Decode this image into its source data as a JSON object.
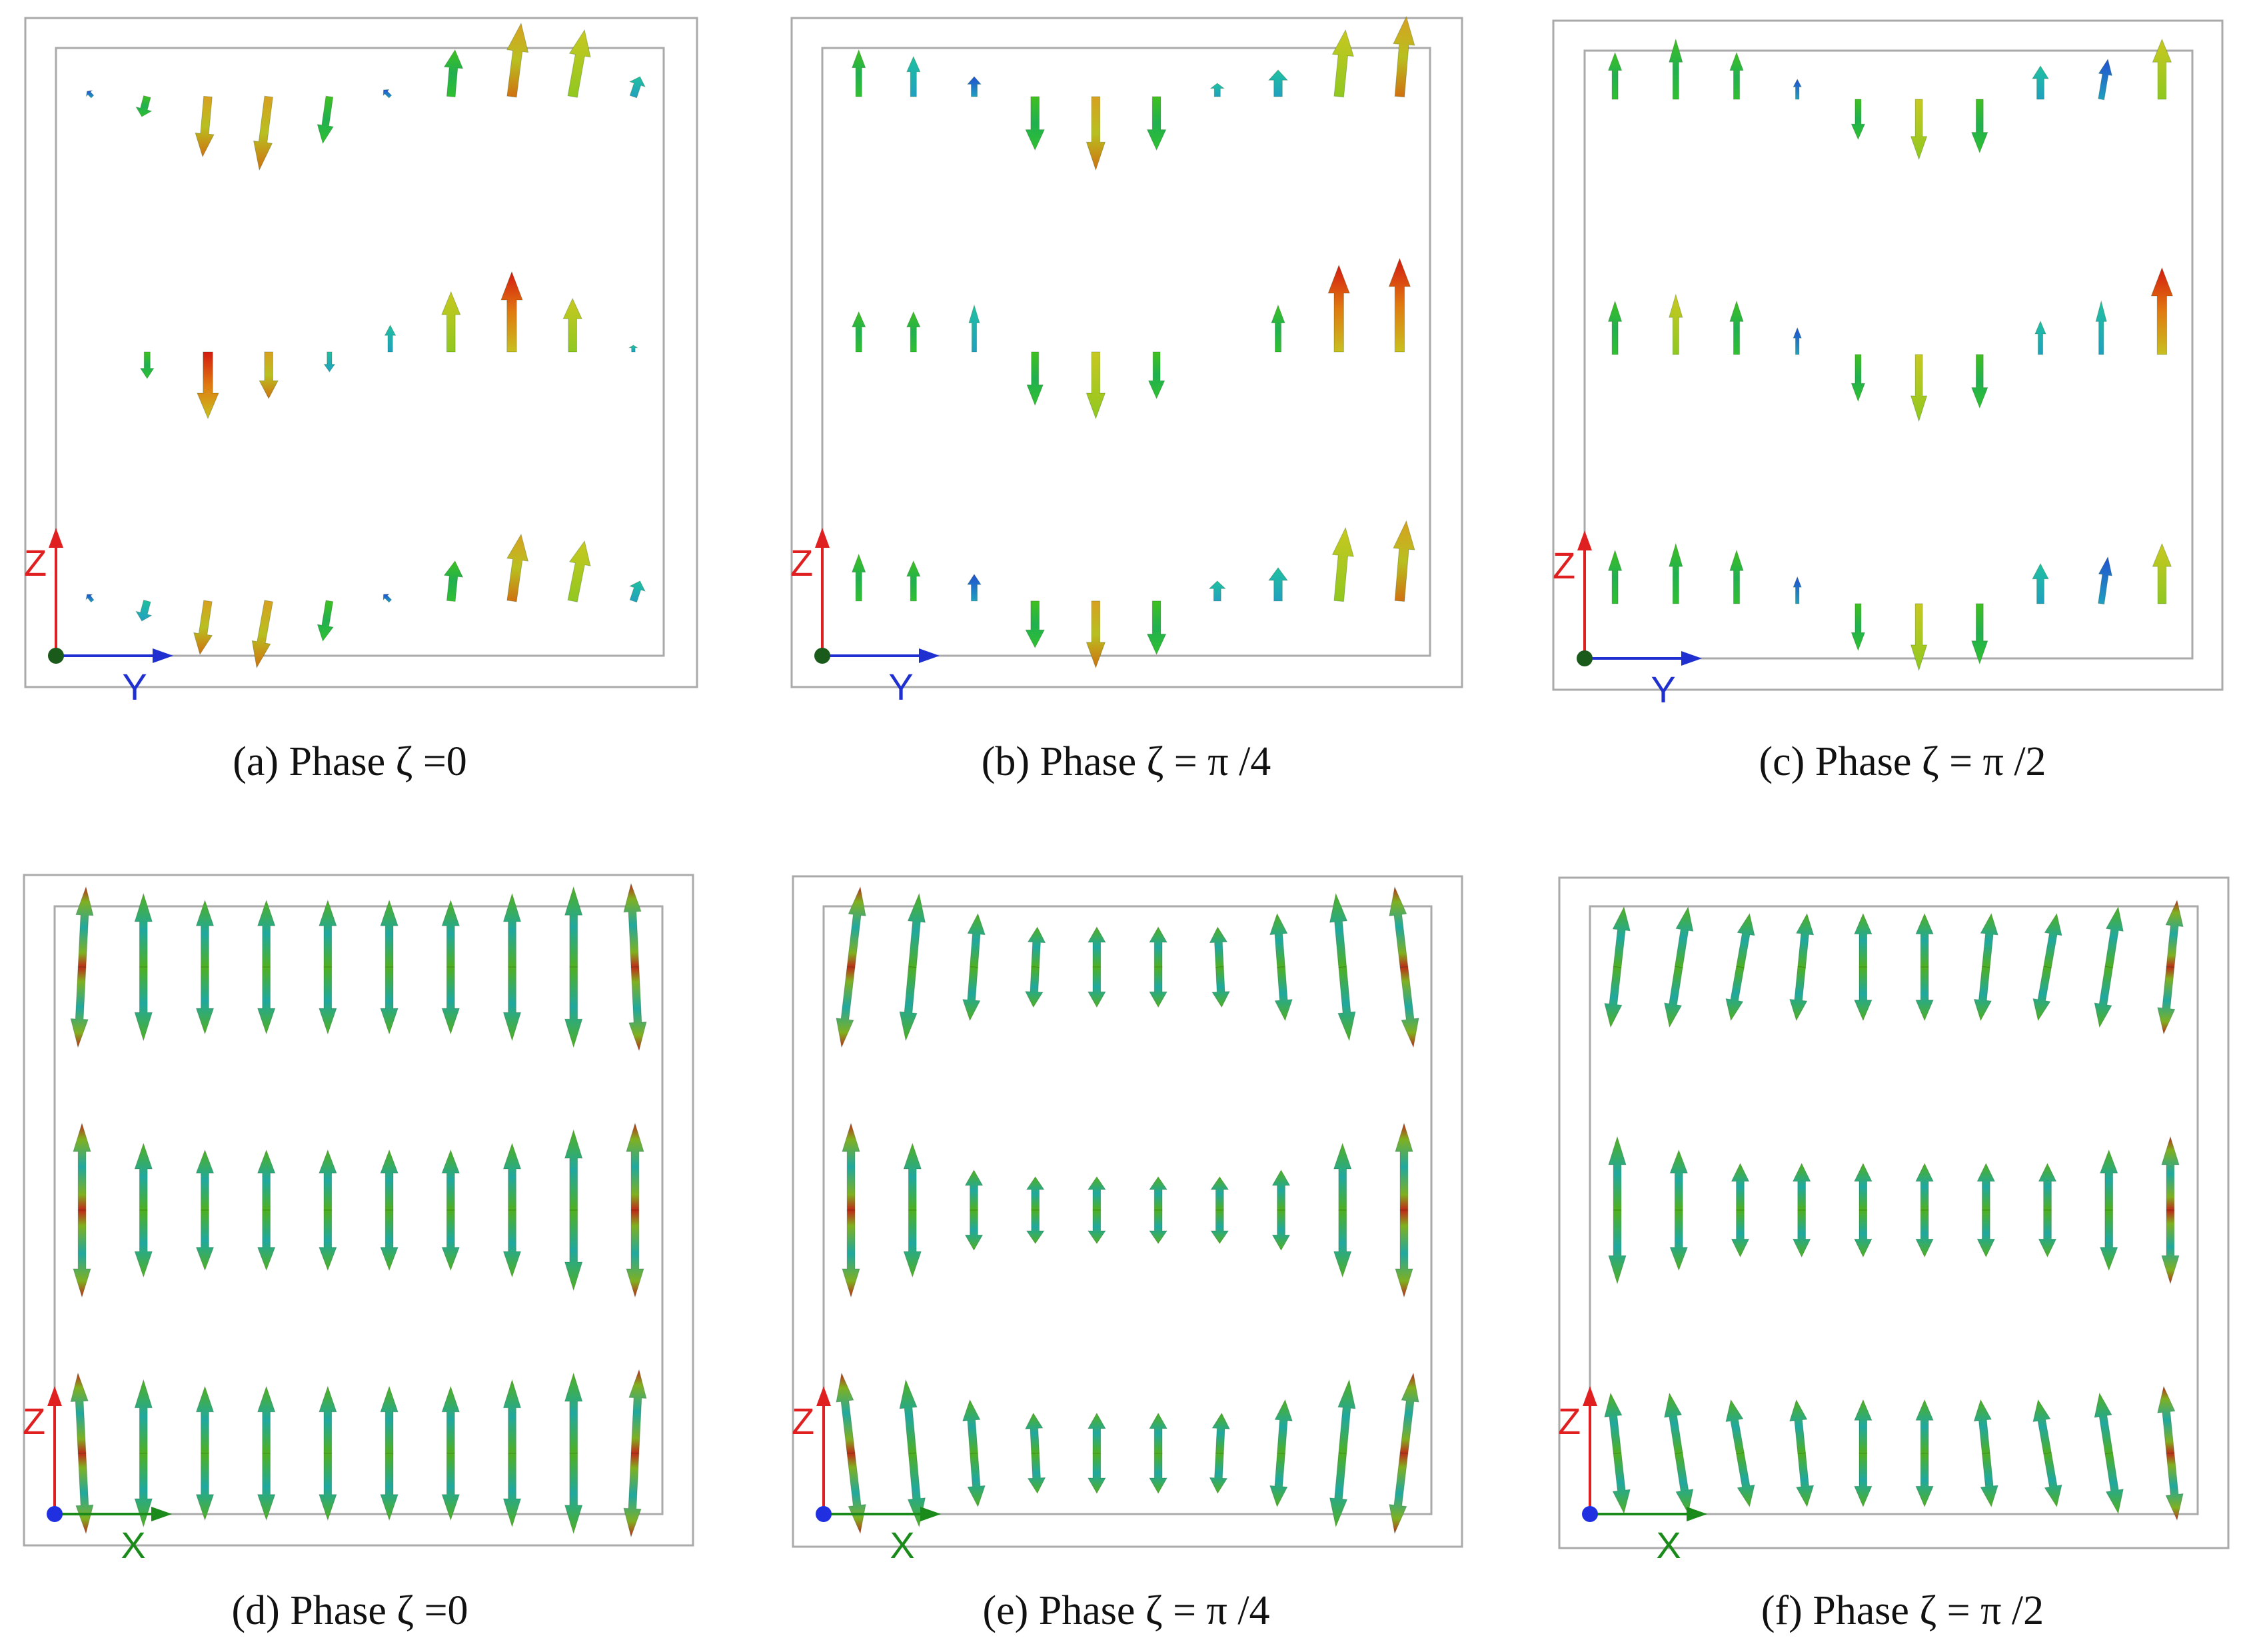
{
  "figure": {
    "panels": [
      {
        "id": "a",
        "caption": "(a) Phase ζ =0",
        "h_axis": "Y",
        "v_axis": "Z",
        "plane": "YZ",
        "phase": "0"
      },
      {
        "id": "b",
        "caption": "(b) Phase ζ = π /4",
        "h_axis": "Y",
        "v_axis": "Z",
        "plane": "YZ",
        "phase": "π/4"
      },
      {
        "id": "c",
        "caption": "(c) Phase ζ = π /2",
        "h_axis": "Y",
        "v_axis": "Z",
        "plane": "YZ",
        "phase": "π/2"
      },
      {
        "id": "d",
        "caption": "(d) Phase ζ =0",
        "h_axis": "X",
        "v_axis": "Z",
        "plane": "XZ",
        "phase": "0"
      },
      {
        "id": "e",
        "caption": "(e) Phase ζ = π /4",
        "h_axis": "X",
        "v_axis": "Z",
        "plane": "XZ",
        "phase": "π/4"
      },
      {
        "id": "f",
        "caption": "(f) Phase ζ = π /2",
        "h_axis": "X",
        "v_axis": "Z",
        "plane": "XZ",
        "phase": "π/2"
      }
    ],
    "colors": {
      "frame": "#aaaaaa",
      "z_axis": "#e02020",
      "y_axis": "#2030d0",
      "x_axis": "#1a8a1a",
      "origin_yz": "#1a5a1a",
      "origin_xz": "#2030e0",
      "caption_text": "#111111"
    }
  }
}
